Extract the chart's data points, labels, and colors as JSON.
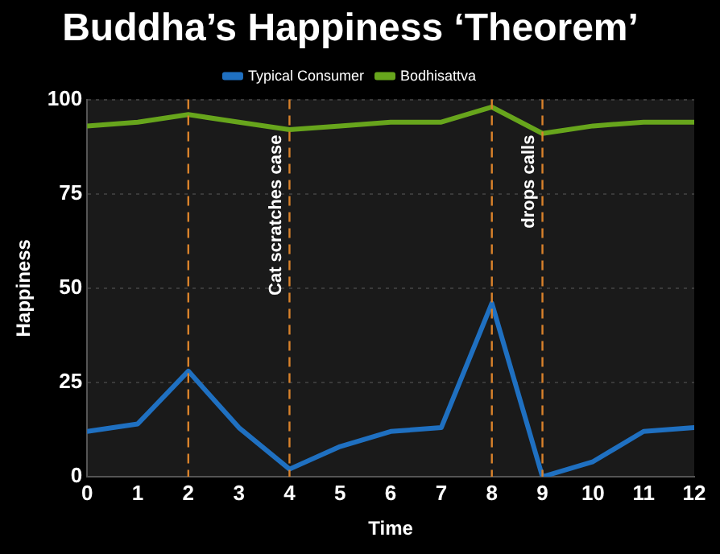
{
  "chart_data": {
    "type": "line",
    "title": "Buddha’s Happiness ‘Theorem’",
    "xlabel": "Time",
    "ylabel": "Happiness",
    "x": [
      0,
      1,
      2,
      3,
      4,
      5,
      6,
      7,
      8,
      9,
      10,
      11,
      12
    ],
    "series": [
      {
        "name": "Typical Consumer",
        "color": "#1f70c1",
        "values": [
          12,
          14,
          28,
          13,
          2,
          8,
          12,
          13,
          46,
          0,
          4,
          12,
          13
        ]
      },
      {
        "name": "Bodhisattva",
        "color": "#67a51c",
        "values": [
          93,
          94,
          96,
          94,
          92,
          93,
          94,
          94,
          98,
          91,
          93,
          94,
          94
        ]
      }
    ],
    "xlim": [
      0,
      12
    ],
    "xticks": [
      0,
      1,
      2,
      3,
      4,
      5,
      6,
      7,
      8,
      9,
      10,
      11,
      12
    ],
    "ylim": [
      0,
      100
    ],
    "yticks": [
      0,
      25,
      50,
      75,
      100
    ],
    "ref_lines": [
      {
        "axis": "x",
        "value": 2,
        "color": "#d9822b",
        "line_style": "dashed"
      },
      {
        "axis": "x",
        "value": 4,
        "label": "Cat scratches case",
        "color": "#d9822b",
        "line_style": "dashed"
      },
      {
        "axis": "x",
        "value": 8,
        "color": "#d9822b",
        "line_style": "dashed"
      },
      {
        "axis": "x",
        "value": 9,
        "label": "drops calls",
        "color": "#d9822b",
        "line_style": "dashed"
      }
    ],
    "grid": "y",
    "legend": "top",
    "marker": "none",
    "line_style": "solid"
  }
}
